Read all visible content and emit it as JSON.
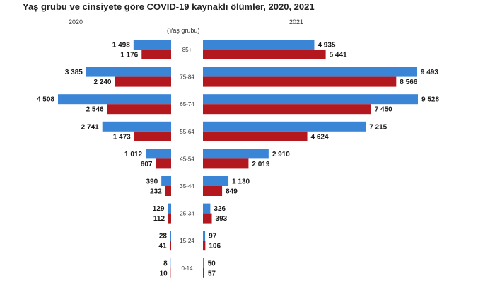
{
  "title": "Yaş grubu ve cinsiyete göre COVID-19 kaynaklı ölümler, 2020, 2021",
  "left_year": "2020",
  "right_year": "2021",
  "axis_title": "(Yaş grubu)",
  "colors": {
    "blue": "#3a85d6",
    "red": "#b3181e"
  },
  "chart_data": {
    "type": "bar",
    "orientation": "horizontal-butterfly",
    "categories": [
      "85+",
      "75-84",
      "65-74",
      "55-64",
      "45-54",
      "35-44",
      "25-34",
      "15-24",
      "0-14"
    ],
    "series": [
      {
        "name": "2020",
        "color": "blue",
        "values": [
          1498,
          3385,
          4508,
          2741,
          1012,
          390,
          129,
          28,
          8
        ],
        "labels": [
          "1 498",
          "3 385",
          "4 508",
          "2 741",
          "1 012",
          "390",
          "129",
          "28",
          "8"
        ]
      },
      {
        "name": "2020",
        "color": "red",
        "values": [
          1176,
          2240,
          2546,
          1473,
          607,
          232,
          112,
          41,
          10
        ],
        "labels": [
          "1 176",
          "2 240",
          "2 546",
          "1 473",
          "607",
          "232",
          "112",
          "41",
          "10"
        ]
      },
      {
        "name": "2021",
        "color": "blue",
        "values": [
          4935,
          9493,
          9528,
          7215,
          2910,
          1130,
          326,
          97,
          50
        ],
        "labels": [
          "4 935",
          "9 493",
          "9 528",
          "7 215",
          "2 910",
          "1 130",
          "326",
          "97",
          "50"
        ]
      },
      {
        "name": "2021",
        "color": "red",
        "values": [
          5441,
          8566,
          7450,
          4624,
          2019,
          849,
          393,
          106,
          57
        ],
        "labels": [
          "5 441",
          "8 566",
          "7 450",
          "4 624",
          "2 019",
          "849",
          "393",
          "106",
          "57"
        ]
      }
    ]
  }
}
